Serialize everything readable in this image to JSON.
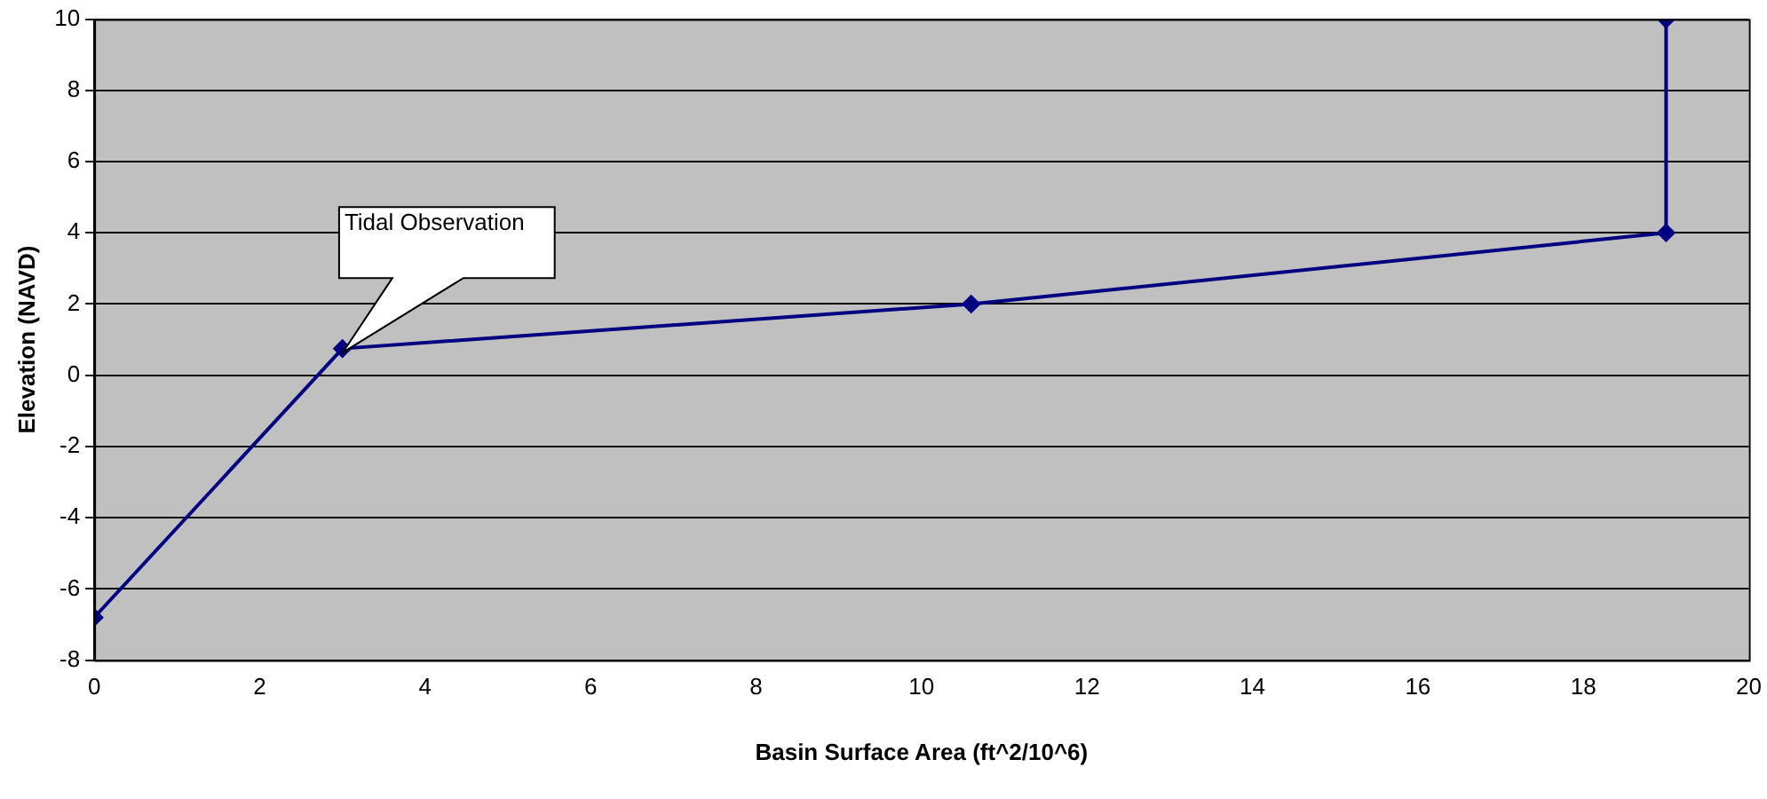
{
  "chart_data": {
    "type": "line",
    "xlabel": "Basin Surface Area (ft^2/10^6)",
    "ylabel": "Elevation (NAVD)",
    "x": [
      0,
      3,
      10.6,
      19,
      19
    ],
    "series": [
      {
        "color": "#000080",
        "values": [
          -6.8,
          0.75,
          2,
          4,
          10
        ]
      }
    ],
    "xlim": [
      0,
      20
    ],
    "xticks": [
      0,
      2,
      4,
      6,
      8,
      10,
      12,
      14,
      16,
      18,
      20
    ],
    "ylim": [
      -8,
      10
    ],
    "yticks": [
      -8,
      -6,
      -4,
      -2,
      0,
      2,
      4,
      6,
      8,
      10
    ],
    "grid": "y",
    "legend": false,
    "marker": "diamond",
    "line_style": "solid",
    "annotations": [
      "Tidal Observation"
    ]
  }
}
